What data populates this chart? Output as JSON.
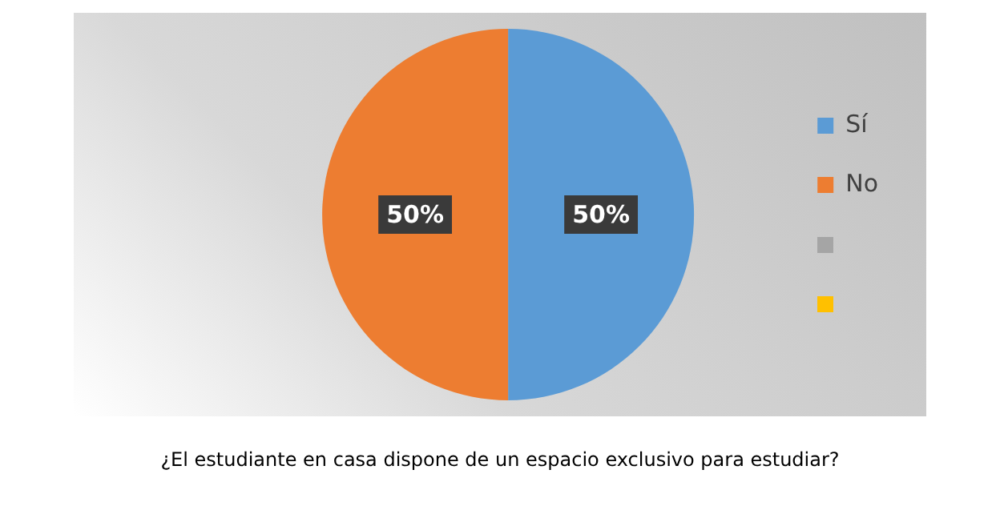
{
  "chart_data": {
    "type": "pie",
    "title": "¿El estudiante en casa dispone de un espacio exclusivo para estudiar?",
    "categories": [
      "Sí",
      "No",
      null,
      null
    ],
    "values": [
      50,
      50,
      0,
      0
    ],
    "colors": [
      "#5b9bd5",
      "#ed7d31",
      "#a5a5a5",
      "#ffc000"
    ],
    "value_labels": [
      "50%",
      "50%",
      null,
      null
    ],
    "legend": "right"
  }
}
